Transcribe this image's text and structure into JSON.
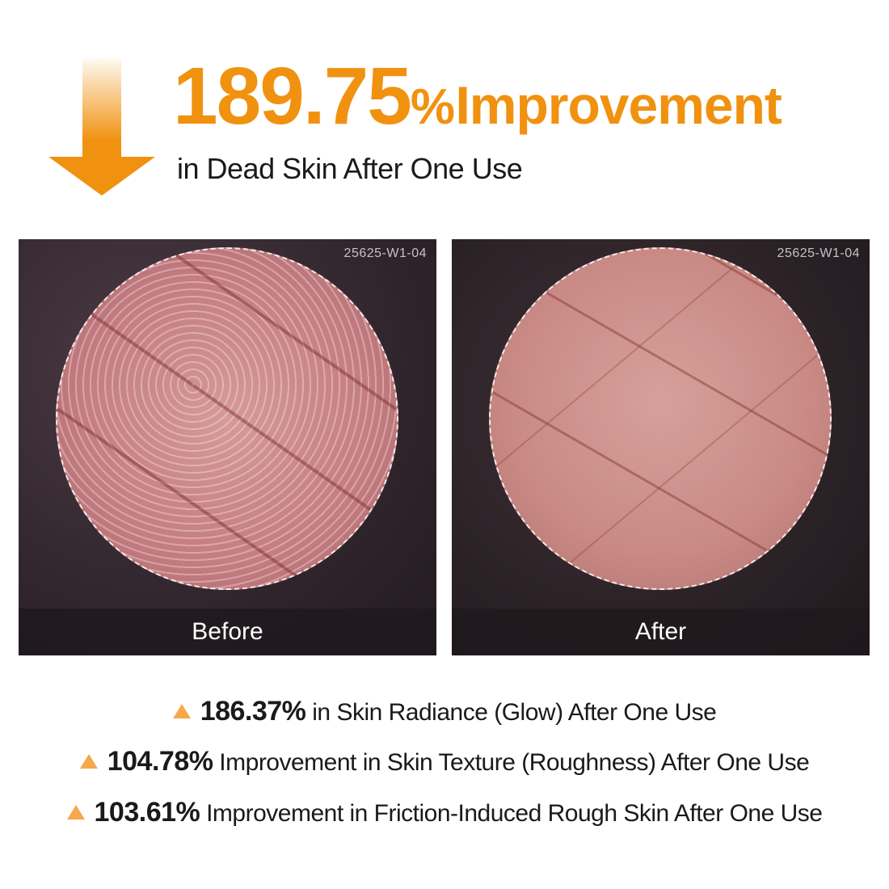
{
  "headline": {
    "value": "189.75",
    "percent": "%",
    "word": "Improvement",
    "subtitle": "in Dead Skin After One Use",
    "accent": "#f0920f",
    "icon": "down-arrow-icon"
  },
  "panels": [
    {
      "code": "25625-W1-04",
      "label": "Before"
    },
    {
      "code": "25625-W1-04",
      "label": "After"
    }
  ],
  "stats": [
    {
      "value": "186.37%",
      "text": " in Skin Radiance (Glow) After One Use",
      "icon": "triangle-up-icon"
    },
    {
      "value": "104.78%",
      "text": " Improvement in Skin Texture (Roughness) After One Use",
      "icon": "triangle-up-icon"
    },
    {
      "value": "103.61%",
      "text": " Improvement in Friction-Induced Rough Skin After One Use",
      "icon": "triangle-up-icon"
    }
  ]
}
